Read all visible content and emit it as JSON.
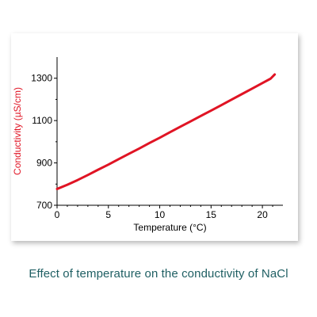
{
  "caption": "Effect of temperature on the conductivity of NaCl",
  "chart_data": {
    "type": "line",
    "xlabel": "Temperature (°C)",
    "ylabel": "Conductivity (µS/cm)",
    "xlim": [
      0,
      22
    ],
    "ylim": [
      700,
      1400
    ],
    "xticks": [
      0,
      5,
      10,
      15,
      20
    ],
    "yticks": [
      700,
      900,
      1100,
      1300
    ],
    "series": [
      {
        "color": "#e01424",
        "x": [
          0,
          1,
          2,
          3,
          4,
          5,
          6,
          7,
          8,
          9,
          10,
          11,
          12,
          13,
          14,
          15,
          16,
          17,
          18,
          19,
          20,
          20.8,
          21.2
        ],
        "values": [
          777,
          797,
          819,
          843,
          868,
          892,
          918,
          943,
          968,
          994,
          1019,
          1045,
          1071,
          1096,
          1122,
          1147,
          1173,
          1199,
          1225,
          1251,
          1277,
          1298,
          1318
        ]
      }
    ],
    "grid": false
  },
  "colors": {
    "series": "#e01424",
    "caption": "#1f5f63",
    "ylabel": "#e01424"
  }
}
